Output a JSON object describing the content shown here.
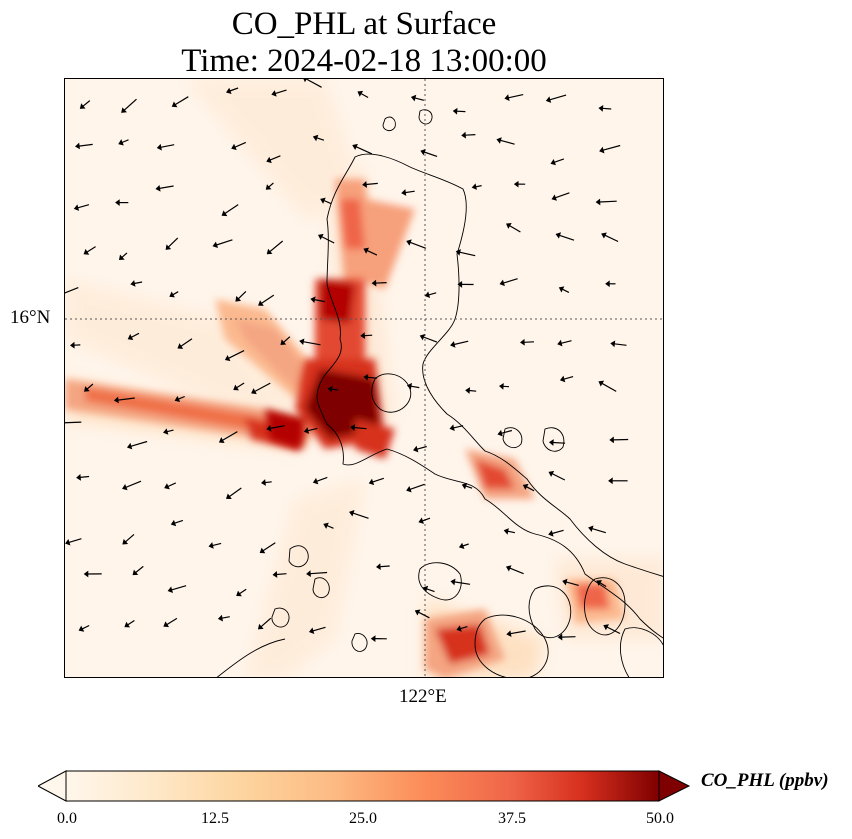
{
  "title": {
    "line1": "CO_PHL at Surface",
    "line2": "Time: 2024-02-18 13:00:00"
  },
  "axes": {
    "lat_tick": "16°N",
    "lon_tick": "122°E"
  },
  "colorbar": {
    "label": "CO_PHL (ppbv)",
    "ticks": [
      "0.0",
      "12.5",
      "25.0",
      "37.5",
      "50.0"
    ],
    "min": 0,
    "max": 50,
    "colormap": "OrRd",
    "extend": "both"
  },
  "colors": {
    "low": "#fff5eb",
    "mid": "#fdae6b",
    "high": "#d94801",
    "max": "#7f0000"
  }
}
